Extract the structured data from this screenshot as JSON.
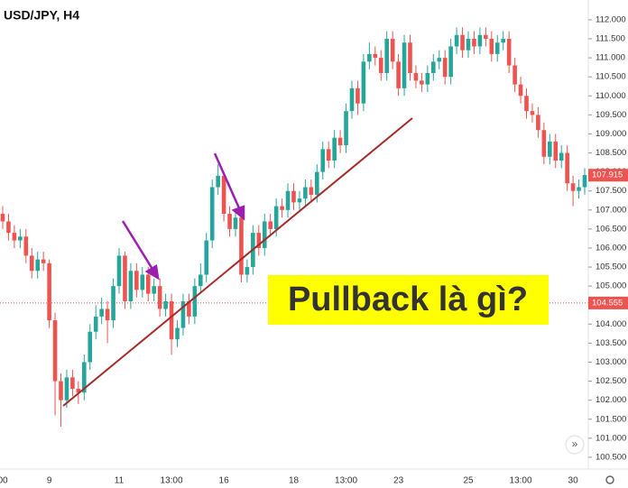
{
  "chart_data": {
    "type": "candlestick",
    "title": "USD/JPY, H4",
    "annotation": "Pullback là gì?",
    "categories": [
      "00",
      null,
      null,
      null,
      null,
      null,
      null,
      null,
      "9",
      null,
      null,
      null,
      null,
      null,
      null,
      null,
      null,
      null,
      null,
      null,
      "11",
      null,
      null,
      null,
      null,
      null,
      null,
      null,
      null,
      "13:00",
      null,
      null,
      null,
      null,
      null,
      null,
      null,
      null,
      "16",
      null,
      null,
      null,
      null,
      null,
      null,
      null,
      null,
      null,
      null,
      null,
      "18",
      null,
      null,
      null,
      null,
      null,
      null,
      null,
      null,
      "13:00",
      null,
      null,
      null,
      null,
      null,
      null,
      null,
      null,
      "23",
      null,
      null,
      null,
      null,
      null,
      null,
      null,
      null,
      null,
      null,
      null,
      "25",
      null,
      null,
      null,
      null,
      null,
      null,
      null,
      null,
      "13:00",
      null,
      null,
      null,
      null,
      null,
      null,
      null,
      null,
      "30",
      null,
      null
    ],
    "open": [
      106.9,
      106.7,
      106.4,
      106.2,
      106.3,
      105.8,
      105.4,
      105.7,
      105.6,
      104.1,
      102.5,
      102.0,
      102.6,
      102.3,
      102.2,
      103.0,
      103.8,
      104.2,
      104.4,
      104.1,
      105.0,
      105.8,
      104.6,
      105.4,
      104.9,
      105.3,
      104.8,
      105.0,
      104.4,
      104.6,
      103.6,
      103.9,
      104.6,
      104.2,
      105.0,
      105.3,
      106.2,
      107.6,
      107.9,
      106.9,
      106.5,
      106.8,
      105.3,
      105.5,
      106.4,
      106.0,
      106.7,
      106.5,
      107.1,
      107.0,
      107.5,
      107.2,
      107.3,
      107.6,
      107.4,
      108.0,
      108.6,
      108.3,
      108.9,
      108.7,
      109.6,
      110.2,
      109.8,
      110.9,
      111.1,
      111.0,
      110.6,
      111.5,
      110.9,
      110.2,
      111.4,
      110.6,
      110.4,
      110.3,
      110.6,
      110.9,
      111.0,
      110.5,
      111.3,
      111.6,
      111.2,
      111.5,
      111.3,
      111.6,
      111.5,
      111.1,
      111.4,
      111.5,
      110.8,
      110.3,
      110.0,
      109.6,
      109.5,
      109.1,
      108.4,
      108.8,
      108.3,
      108.5,
      107.7,
      107.5,
      107.6
    ],
    "high": [
      107.1,
      106.9,
      106.6,
      106.5,
      106.5,
      106.0,
      105.9,
      105.9,
      105.7,
      104.3,
      102.7,
      102.8,
      102.8,
      102.5,
      103.2,
      104.0,
      104.5,
      104.7,
      104.6,
      105.2,
      106.0,
      105.9,
      105.6,
      105.6,
      105.5,
      105.5,
      105.2,
      105.2,
      104.8,
      104.8,
      104.1,
      104.8,
      104.8,
      105.2,
      105.6,
      106.4,
      107.8,
      108.2,
      108.0,
      107.1,
      107.0,
      107.0,
      105.7,
      106.6,
      106.6,
      106.9,
      106.9,
      107.3,
      107.3,
      107.7,
      107.7,
      107.5,
      107.8,
      107.8,
      108.2,
      108.8,
      108.8,
      109.1,
      109.1,
      109.8,
      110.4,
      110.4,
      111.1,
      111.4,
      111.3,
      111.2,
      111.7,
      111.7,
      111.1,
      111.6,
      111.6,
      110.8,
      110.6,
      110.8,
      111.1,
      111.2,
      111.2,
      111.5,
      111.8,
      111.8,
      111.7,
      111.7,
      111.8,
      111.8,
      111.7,
      111.6,
      111.7,
      111.7,
      111.0,
      110.5,
      110.2,
      109.8,
      109.7,
      109.3,
      109.0,
      109.0,
      108.7,
      108.7,
      107.9,
      107.8,
      108.1
    ],
    "low": [
      106.5,
      106.2,
      106.0,
      106.0,
      105.6,
      105.2,
      105.2,
      105.4,
      103.9,
      101.6,
      101.3,
      101.8,
      102.1,
      101.9,
      102.0,
      102.8,
      103.6,
      104.0,
      103.5,
      103.9,
      104.8,
      104.4,
      104.4,
      104.7,
      104.7,
      104.6,
      104.6,
      104.2,
      104.2,
      103.2,
      103.4,
      103.7,
      104.0,
      104.0,
      104.8,
      105.1,
      106.0,
      107.4,
      106.7,
      106.3,
      106.3,
      105.1,
      105.1,
      105.3,
      105.8,
      105.8,
      106.3,
      106.3,
      106.8,
      106.8,
      107.0,
      107.0,
      107.1,
      107.2,
      107.2,
      107.8,
      108.1,
      108.1,
      108.5,
      108.5,
      109.4,
      109.5,
      109.6,
      110.7,
      110.8,
      110.4,
      110.4,
      110.7,
      110.0,
      110.0,
      110.4,
      110.2,
      110.1,
      110.1,
      110.4,
      110.7,
      110.3,
      110.3,
      111.1,
      111.0,
      111.0,
      111.1,
      111.1,
      111.3,
      110.9,
      110.9,
      111.2,
      110.6,
      110.1,
      109.8,
      109.4,
      109.3,
      108.9,
      108.2,
      108.2,
      108.1,
      108.1,
      107.5,
      107.1,
      107.3,
      107.4
    ],
    "close": [
      106.7,
      106.4,
      106.2,
      106.3,
      105.8,
      105.4,
      105.7,
      105.6,
      104.1,
      102.5,
      102.0,
      102.6,
      102.3,
      102.2,
      103.0,
      103.8,
      104.2,
      104.4,
      104.1,
      105.0,
      105.8,
      104.6,
      105.4,
      104.9,
      105.3,
      104.8,
      105.0,
      104.4,
      104.6,
      103.6,
      103.9,
      104.6,
      104.2,
      105.0,
      105.3,
      106.2,
      107.6,
      107.9,
      106.9,
      106.5,
      106.8,
      105.3,
      105.5,
      106.4,
      106.0,
      106.7,
      106.5,
      107.1,
      107.0,
      107.5,
      107.2,
      107.3,
      107.6,
      107.4,
      108.0,
      108.6,
      108.3,
      108.9,
      108.7,
      109.6,
      110.2,
      109.8,
      110.9,
      111.1,
      111.0,
      110.6,
      111.5,
      110.9,
      110.2,
      111.4,
      110.6,
      110.4,
      110.3,
      110.6,
      110.9,
      111.0,
      110.5,
      111.3,
      111.6,
      111.2,
      111.5,
      111.3,
      111.6,
      111.5,
      111.1,
      111.4,
      111.5,
      110.8,
      110.3,
      110.0,
      109.6,
      109.5,
      109.1,
      108.4,
      108.8,
      108.3,
      108.5,
      107.7,
      107.5,
      107.6,
      107.92
    ],
    "up_color": "#26a69a",
    "down_color": "#ef5350",
    "last_price": 107.915,
    "marked_price": 104.555,
    "ylim": [
      100.19,
      112.52
    ],
    "yticks": [
      {
        "value": 100.5,
        "label": "100.500"
      },
      {
        "value": 101,
        "label": "101.000"
      },
      {
        "value": 101.5,
        "label": "101.500"
      },
      {
        "value": 102,
        "label": "102.000"
      },
      {
        "value": 102.5,
        "label": "102.500"
      },
      {
        "value": 103,
        "label": "103.000"
      },
      {
        "value": 103.5,
        "label": "103.500"
      },
      {
        "value": 104,
        "label": "104.000"
      },
      {
        "value": 104.5,
        "label": "104.500"
      },
      {
        "value": 105,
        "label": "105.000"
      },
      {
        "value": 105.5,
        "label": "105.500"
      },
      {
        "value": 106,
        "label": "106.000"
      },
      {
        "value": 106.5,
        "label": "106.500"
      },
      {
        "value": 107,
        "label": "107.000"
      },
      {
        "value": 107.5,
        "label": "107.500"
      },
      {
        "value": 108,
        "label": "108.000"
      },
      {
        "value": 108.5,
        "label": "108.500"
      },
      {
        "value": 109,
        "label": "109.000"
      },
      {
        "value": 109.5,
        "label": "109.500"
      },
      {
        "value": 110,
        "label": "110.000"
      },
      {
        "value": 110.5,
        "label": "110.500"
      },
      {
        "value": 111,
        "label": "111.000"
      },
      {
        "value": 111.5,
        "label": "111.500"
      },
      {
        "value": 112,
        "label": "112.000"
      }
    ],
    "grid": false
  }
}
